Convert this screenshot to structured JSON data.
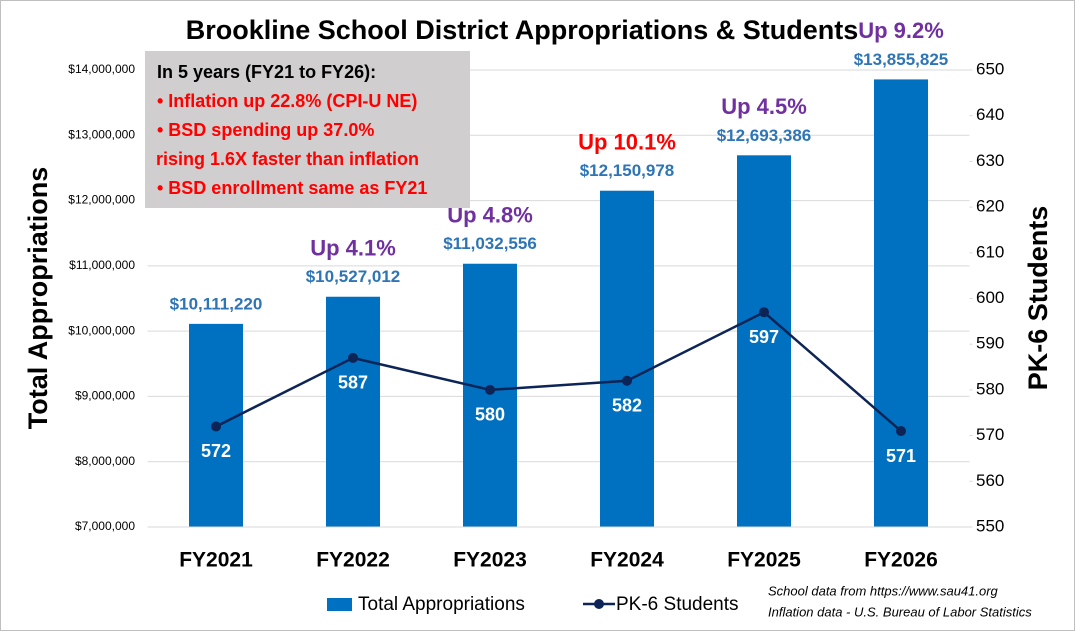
{
  "chart_data": {
    "type": "bar_line",
    "title": "Brookline School District Appropriations & Students",
    "categories": [
      "FY2021",
      "FY2022",
      "FY2023",
      "FY2024",
      "FY2025",
      "FY2026"
    ],
    "series": [
      {
        "name": "Total Appropriations",
        "color": "#0070c0",
        "type": "bar",
        "values": [
          10111220,
          10527012,
          11032556,
          12150978,
          12693386,
          13855825
        ],
        "value_labels": [
          "$10,111,220",
          "$10,527,012",
          "$11,032,556",
          "$12,150,978",
          "$12,693,386",
          "$13,855,825"
        ],
        "label_color": "#2e75b6"
      },
      {
        "name": "PK-6 Students",
        "color": "#0d2456",
        "type": "line",
        "axis": "y2",
        "values": [
          572,
          587,
          580,
          582,
          597,
          571
        ],
        "label_color": "#ffffff"
      }
    ],
    "change_labels": [
      null,
      "Up 4.1%",
      "Up 4.8%",
      "Up 10.1%",
      "Up 4.5%",
      "Up 9.2%"
    ],
    "change_label_colors": [
      null,
      "#7030a0",
      "#7030a0",
      "#ff0000",
      "#7030a0",
      "#7030a0"
    ],
    "ylabel": "Total Appropriations",
    "y2label": "PK-6 Students",
    "ylim": [
      7000000,
      14000000
    ],
    "yticks": [
      {
        "value": 7000000,
        "label": "$7,000,000"
      },
      {
        "value": 8000000,
        "label": "$8,000,000"
      },
      {
        "value": 9000000,
        "label": "$9,000,000"
      },
      {
        "value": 10000000,
        "label": "$10,000,000"
      },
      {
        "value": 11000000,
        "label": "$11,000,000"
      },
      {
        "value": 12000000,
        "label": "$12,000,000"
      },
      {
        "value": 13000000,
        "label": "$13,000,000"
      },
      {
        "value": 14000000,
        "label": "$14,000,000"
      }
    ],
    "y2lim": [
      550,
      650
    ],
    "y2ticks": [
      550,
      560,
      570,
      580,
      590,
      600,
      610,
      620,
      630,
      640,
      650
    ],
    "grid": true,
    "legend": "bottom",
    "notes": [
      {
        "text": "In 5 years (FY21 to FY26):",
        "color": "#000000"
      },
      {
        "text": "• Inflation up 22.8% (CPI-U NE)",
        "color": "#ff0000"
      },
      {
        "text": "• BSD spending up 37.0%",
        "color": "#ff0000"
      },
      {
        "text": "rising 1.6X faster than inflation",
        "color": "#ff0000"
      },
      {
        "text": "• BSD enrollment same as FY21",
        "color": "#ff0000"
      }
    ],
    "sources": [
      "School data from https://www.sau41.org",
      "Inflation data - U.S. Bureau of Labor Statistics"
    ]
  }
}
